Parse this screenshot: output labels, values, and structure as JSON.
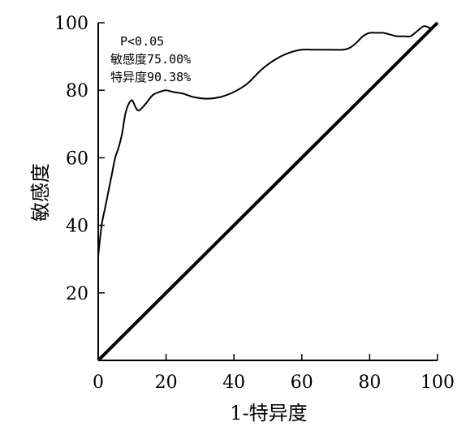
{
  "chart_data": {
    "type": "line",
    "xlabel": "1-特异度",
    "ylabel": "敏感度",
    "xlim": [
      0,
      100
    ],
    "ylim": [
      0,
      100
    ],
    "x_ticks": [
      "0",
      "20",
      "40",
      "60",
      "80",
      "100"
    ],
    "y_ticks": [
      "20",
      "40",
      "60",
      "80",
      "100"
    ],
    "grid": false,
    "annotations": [
      "P<0.05",
      "敏感度75.00%",
      "特异度90.38%"
    ],
    "series": [
      {
        "x": [
          0,
          1,
          2,
          3,
          4,
          5,
          6,
          7,
          8,
          9,
          10,
          11,
          12,
          14,
          16,
          18,
          20,
          22,
          25,
          28,
          32,
          36,
          40,
          44,
          48,
          52,
          56,
          60,
          64,
          68,
          72,
          74,
          76,
          78,
          80,
          82,
          84,
          86,
          88,
          90,
          92,
          94,
          96,
          98,
          100
        ],
        "y": [
          31,
          40,
          45,
          50,
          55,
          60,
          63,
          67,
          73,
          76,
          77,
          75,
          74,
          76,
          78.5,
          79.5,
          80,
          79.5,
          79,
          78,
          77.5,
          78,
          79.5,
          82,
          86,
          89,
          91,
          92,
          92,
          92,
          92,
          92.5,
          94,
          96,
          97,
          97,
          97,
          96.5,
          96,
          96,
          96,
          97.5,
          99,
          98.5,
          100
        ]
      },
      {
        "x": [
          0,
          100
        ],
        "y": [
          0,
          100
        ]
      }
    ]
  }
}
